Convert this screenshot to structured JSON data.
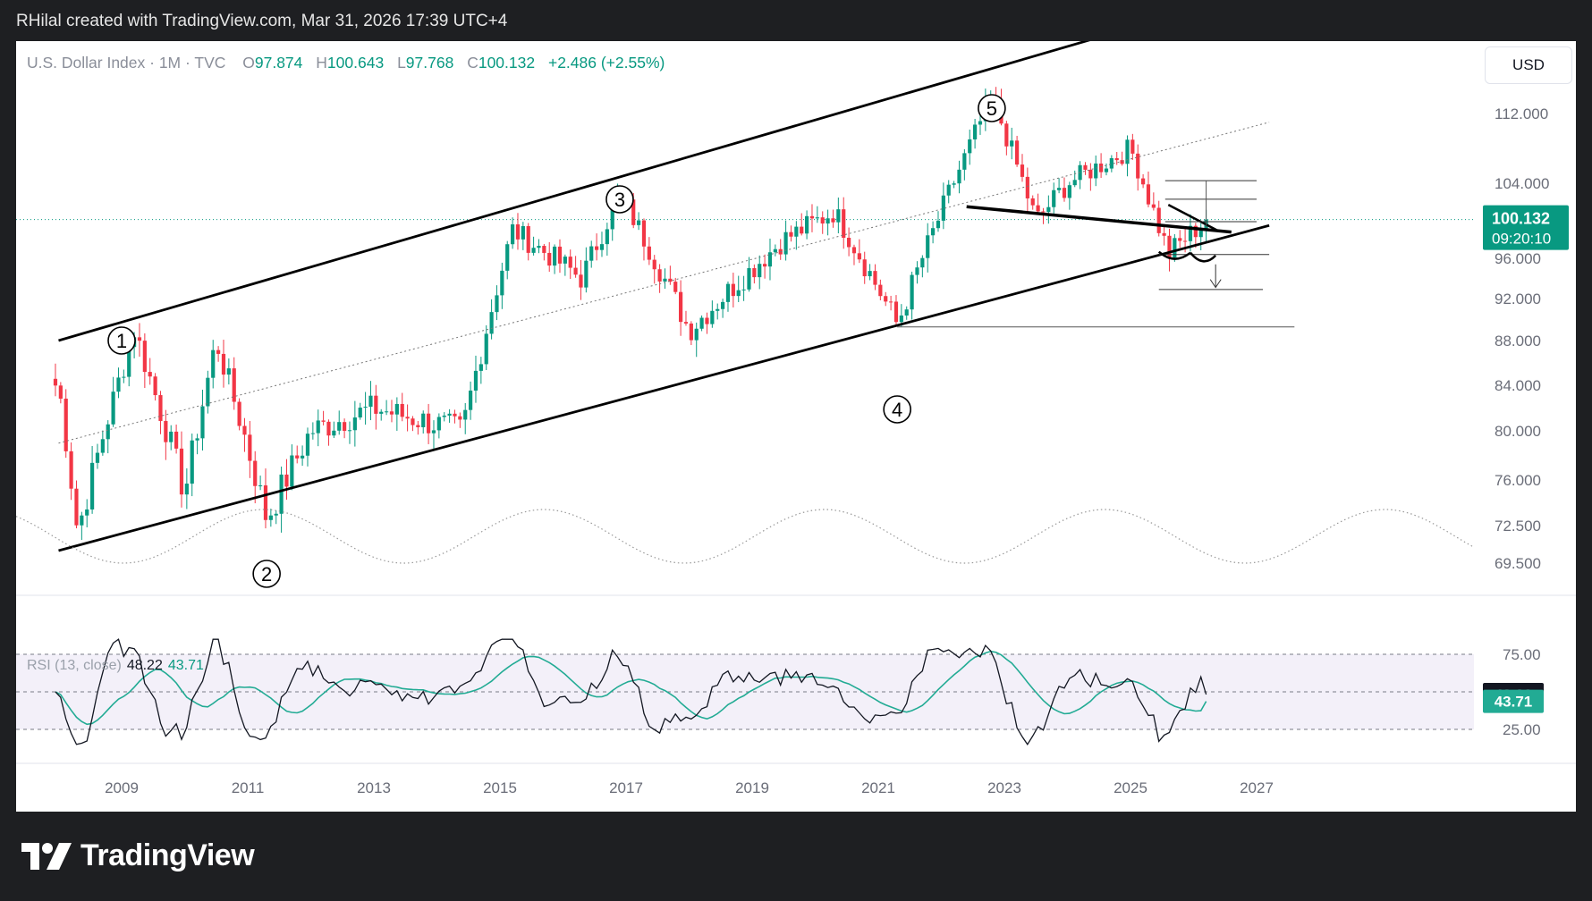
{
  "header": {
    "credit": "RHilal created with TradingView.com, Mar 31, 2026 17:39 UTC+4"
  },
  "symbol": {
    "name": "U.S. Dollar Index · 1M · TVC",
    "open_label": "O",
    "open": "97.874",
    "high_label": "H",
    "high": "100.643",
    "low_label": "L",
    "low": "97.768",
    "close_label": "C",
    "close": "100.132",
    "change": "+2.486 (+2.55%)"
  },
  "currency_button": "USD",
  "price_tag": {
    "price": "100.132",
    "countdown": "09:20:10"
  },
  "rsi": {
    "label": "RSI (13, close)",
    "value": "48.22",
    "ma": "43.71"
  },
  "brand": "TradingView",
  "colors": {
    "up": "#089981",
    "down": "#f23645",
    "rsi_line": "#131722",
    "rsi_ma": "#22ab94",
    "rsi_band": "#7e57c2",
    "background": "#ffffff",
    "frame": "#1e1f22"
  },
  "chart_data": [
    {
      "type": "candlestick",
      "title": "U.S. Dollar Index · 1M · TVC",
      "x_ticks": [
        "2009",
        "2011",
        "2013",
        "2015",
        "2017",
        "2019",
        "2021",
        "2023",
        "2025",
        "2027"
      ],
      "y_ticks": [
        "112.000",
        "104.000",
        "96.000",
        "92.000",
        "88.000",
        "84.000",
        "80.000",
        "76.000",
        "72.500",
        "69.500"
      ],
      "ylim": [
        69.5,
        116
      ],
      "last_close": 100.132,
      "series": [
        {
          "name": "",
          "key_points": [
            {
              "x": "2008.0",
              "y": 84
            },
            {
              "x": "2008.3",
              "y": 72
            },
            {
              "x": "2009.2",
              "y": 89
            },
            {
              "x": "2010.0",
              "y": 75
            },
            {
              "x": "2010.5",
              "y": 88
            },
            {
              "x": "2011.3",
              "y": 73
            },
            {
              "x": "2012.0",
              "y": 80
            },
            {
              "x": "2013.0",
              "y": 82
            },
            {
              "x": "2014.4",
              "y": 80
            },
            {
              "x": "2015.2",
              "y": 99
            },
            {
              "x": "2016.3",
              "y": 94
            },
            {
              "x": "2016.9",
              "y": 103
            },
            {
              "x": "2018.0",
              "y": 89
            },
            {
              "x": "2019.5",
              "y": 98
            },
            {
              "x": "2020.3",
              "y": 101
            },
            {
              "x": "2021.3",
              "y": 89.5
            },
            {
              "x": "2022.8",
              "y": 114
            },
            {
              "x": "2023.5",
              "y": 100
            },
            {
              "x": "2024.0",
              "y": 104
            },
            {
              "x": "2025.0",
              "y": 108
            },
            {
              "x": "2025.6",
              "y": 96.5
            },
            {
              "x": "2026.2",
              "y": 100.1
            }
          ]
        }
      ],
      "annotations": [
        "1",
        "2",
        "3",
        "4",
        "5"
      ]
    },
    {
      "type": "line",
      "title": "RSI (13, close)",
      "y_ticks": [
        "75.00",
        "25.00"
      ],
      "ylim": [
        20,
        80
      ],
      "levels": [
        75,
        50,
        25
      ],
      "latest": {
        "rsi": 48.22,
        "ma": 43.71
      }
    }
  ]
}
